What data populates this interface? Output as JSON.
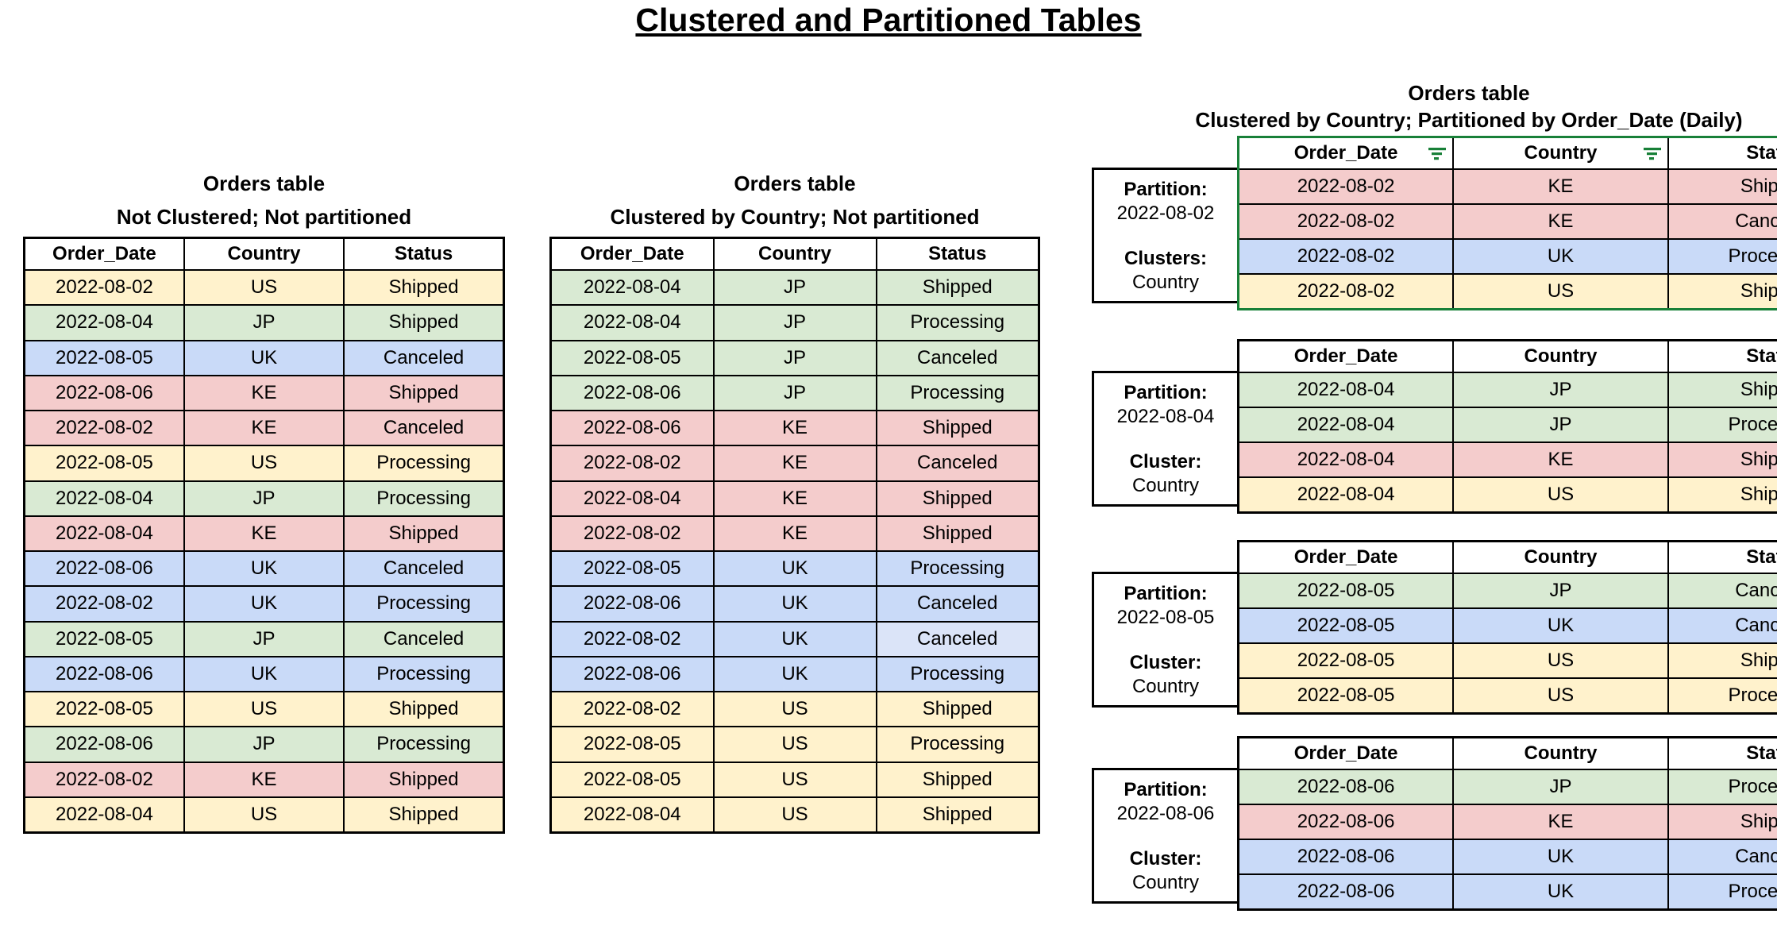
{
  "page_title": "Clustered and Partitioned Tables",
  "colors": {
    "by_country": {
      "US": "#fff2cc",
      "JP": "#d9ead3",
      "UK": "#c9daf8",
      "KE": "#f4cccc"
    },
    "uk_status_light_variant": "#dbe4f8",
    "filter_icon_green": "#188038",
    "filtered_table_border_green": "#188038",
    "table_border_black": "#000000"
  },
  "left_table": {
    "title_line1": "Orders table",
    "title_line2": "Not Clustered; Not partitioned",
    "headers": [
      "Order_Date",
      "Country",
      "Status"
    ],
    "rows": [
      {
        "order_date": "2022-08-02",
        "country": "US",
        "status": "Shipped"
      },
      {
        "order_date": "2022-08-04",
        "country": "JP",
        "status": "Shipped"
      },
      {
        "order_date": "2022-08-05",
        "country": "UK",
        "status": "Canceled"
      },
      {
        "order_date": "2022-08-06",
        "country": "KE",
        "status": "Shipped"
      },
      {
        "order_date": "2022-08-02",
        "country": "KE",
        "status": "Canceled"
      },
      {
        "order_date": "2022-08-05",
        "country": "US",
        "status": "Processing"
      },
      {
        "order_date": "2022-08-04",
        "country": "JP",
        "status": "Processing"
      },
      {
        "order_date": "2022-08-04",
        "country": "KE",
        "status": "Shipped"
      },
      {
        "order_date": "2022-08-06",
        "country": "UK",
        "status": "Canceled"
      },
      {
        "order_date": "2022-08-02",
        "country": "UK",
        "status": "Processing"
      },
      {
        "order_date": "2022-08-05",
        "country": "JP",
        "status": "Canceled"
      },
      {
        "order_date": "2022-08-06",
        "country": "UK",
        "status": "Processing"
      },
      {
        "order_date": "2022-08-05",
        "country": "US",
        "status": "Shipped"
      },
      {
        "order_date": "2022-08-06",
        "country": "JP",
        "status": "Processing"
      },
      {
        "order_date": "2022-08-02",
        "country": "KE",
        "status": "Shipped"
      },
      {
        "order_date": "2022-08-04",
        "country": "US",
        "status": "Shipped"
      }
    ]
  },
  "middle_table": {
    "title_line1": "Orders table",
    "title_line2": "Clustered by Country; Not partitioned",
    "headers": [
      "Order_Date",
      "Country",
      "Status"
    ],
    "rows": [
      {
        "order_date": "2022-08-04",
        "country": "JP",
        "status": "Shipped"
      },
      {
        "order_date": "2022-08-04",
        "country": "JP",
        "status": "Processing"
      },
      {
        "order_date": "2022-08-05",
        "country": "JP",
        "status": "Canceled"
      },
      {
        "order_date": "2022-08-06",
        "country": "JP",
        "status": "Processing"
      },
      {
        "order_date": "2022-08-06",
        "country": "KE",
        "status": "Shipped"
      },
      {
        "order_date": "2022-08-02",
        "country": "KE",
        "status": "Canceled"
      },
      {
        "order_date": "2022-08-04",
        "country": "KE",
        "status": "Shipped"
      },
      {
        "order_date": "2022-08-02",
        "country": "KE",
        "status": "Shipped"
      },
      {
        "order_date": "2022-08-05",
        "country": "UK",
        "status": "Processing"
      },
      {
        "order_date": "2022-08-06",
        "country": "UK",
        "status": "Canceled"
      },
      {
        "order_date": "2022-08-02",
        "country": "UK",
        "status": "Canceled",
        "status_color_override": "#dbe4f8"
      },
      {
        "order_date": "2022-08-06",
        "country": "UK",
        "status": "Processing"
      },
      {
        "order_date": "2022-08-02",
        "country": "US",
        "status": "Shipped"
      },
      {
        "order_date": "2022-08-05",
        "country": "US",
        "status": "Processing"
      },
      {
        "order_date": "2022-08-05",
        "country": "US",
        "status": "Shipped"
      },
      {
        "order_date": "2022-08-04",
        "country": "US",
        "status": "Shipped"
      }
    ]
  },
  "right_section": {
    "title_line1": "Orders table",
    "title_line2": "Clustered by Country; Partitioned by Order_Date (Daily)",
    "headers": [
      "Order_Date",
      "Country",
      "Status"
    ],
    "filter_icon": "filter-icon",
    "partitions": [
      {
        "partition_label": "Partition:",
        "partition_value": "2022-08-02",
        "cluster_label": "Clusters:",
        "cluster_value": "Country",
        "filtered": true,
        "rows": [
          {
            "order_date": "2022-08-02",
            "country": "KE",
            "status": "Shipped"
          },
          {
            "order_date": "2022-08-02",
            "country": "KE",
            "status": "Canceled"
          },
          {
            "order_date": "2022-08-02",
            "country": "UK",
            "status": "Processing"
          },
          {
            "order_date": "2022-08-02",
            "country": "US",
            "status": "Shipped"
          }
        ]
      },
      {
        "partition_label": "Partition:",
        "partition_value": "2022-08-04",
        "cluster_label": "Cluster:",
        "cluster_value": "Country",
        "filtered": false,
        "rows": [
          {
            "order_date": "2022-08-04",
            "country": "JP",
            "status": "Shipped"
          },
          {
            "order_date": "2022-08-04",
            "country": "JP",
            "status": "Processing"
          },
          {
            "order_date": "2022-08-04",
            "country": "KE",
            "status": "Shipped"
          },
          {
            "order_date": "2022-08-04",
            "country": "US",
            "status": "Shipped"
          }
        ]
      },
      {
        "partition_label": "Partition:",
        "partition_value": "2022-08-05",
        "cluster_label": "Cluster:",
        "cluster_value": "Country",
        "filtered": false,
        "rows": [
          {
            "order_date": "2022-08-05",
            "country": "JP",
            "status": "Canceled"
          },
          {
            "order_date": "2022-08-05",
            "country": "UK",
            "status": "Canceled"
          },
          {
            "order_date": "2022-08-05",
            "country": "US",
            "status": "Shipped"
          },
          {
            "order_date": "2022-08-05",
            "country": "US",
            "status": "Processing"
          }
        ]
      },
      {
        "partition_label": "Partition:",
        "partition_value": "2022-08-06",
        "cluster_label": "Cluster:",
        "cluster_value": "Country",
        "filtered": false,
        "rows": [
          {
            "order_date": "2022-08-06",
            "country": "JP",
            "status": "Processing"
          },
          {
            "order_date": "2022-08-06",
            "country": "KE",
            "status": "Shipped"
          },
          {
            "order_date": "2022-08-06",
            "country": "UK",
            "status": "Canceled"
          },
          {
            "order_date": "2022-08-06",
            "country": "UK",
            "status": "Processing"
          }
        ]
      }
    ]
  }
}
